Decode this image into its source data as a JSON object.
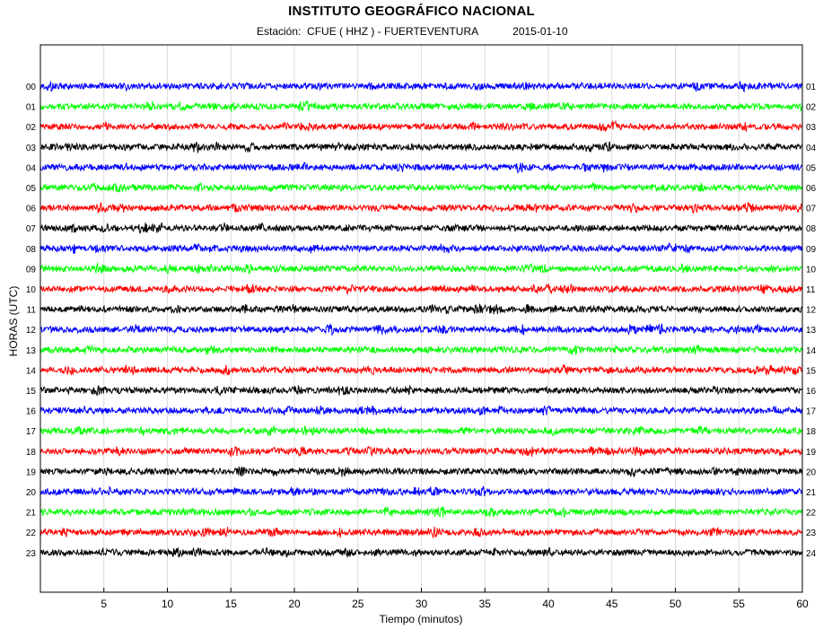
{
  "header": {
    "title": "INSTITUTO GEOGRÁFICO NACIONAL",
    "station_label": "Estación:  CFUE ( HHZ ) - FUERTEVENTURA",
    "date": "2015-01-10"
  },
  "chart_data": {
    "type": "line",
    "title": "INSTITUTO GEOGRÁFICO NACIONAL",
    "xlabel": "Tiempo (minutos)",
    "ylabel": "HORAS (UTC)",
    "xlim": [
      0,
      60
    ],
    "x_ticks": [
      5,
      10,
      15,
      20,
      25,
      30,
      35,
      40,
      45,
      50,
      55,
      60
    ],
    "grid": "vertical",
    "left_hour_labels": [
      "00",
      "01",
      "02",
      "03",
      "04",
      "05",
      "06",
      "07",
      "08",
      "09",
      "10",
      "11",
      "12",
      "13",
      "14",
      "15",
      "16",
      "17",
      "18",
      "19",
      "20",
      "21",
      "22",
      "23"
    ],
    "right_hour_labels": [
      "01",
      "02",
      "03",
      "04",
      "05",
      "06",
      "07",
      "08",
      "09",
      "10",
      "11",
      "12",
      "13",
      "14",
      "15",
      "16",
      "17",
      "18",
      "19",
      "20",
      "21",
      "22",
      "23",
      "24"
    ],
    "trace_colors": [
      "#0000ff",
      "#00ff00",
      "#ff0000",
      "#000000"
    ]
  }
}
